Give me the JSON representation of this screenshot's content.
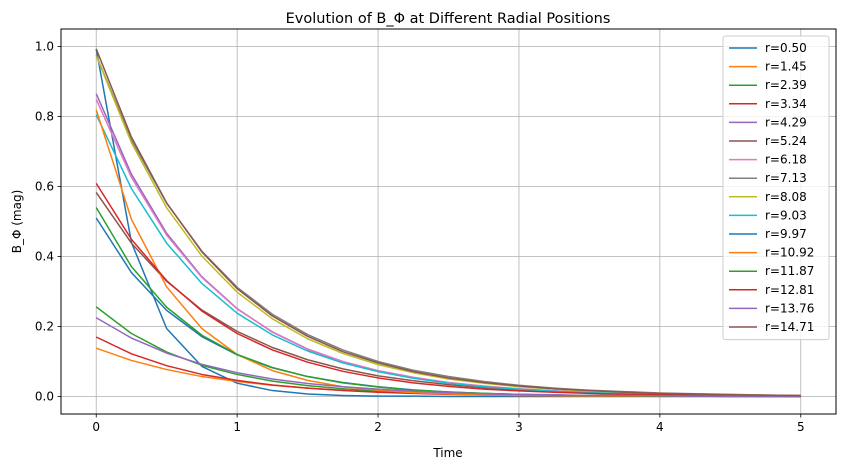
{
  "chart_data": {
    "type": "line",
    "title": "Evolution of B_Φ at Different Radial Positions",
    "xlabel": "Time",
    "ylabel": "B_Φ (mag)",
    "xlim": [
      -0.25,
      5.25
    ],
    "ylim": [
      -0.05,
      1.05
    ],
    "xticks": [
      0,
      1,
      2,
      3,
      4,
      5
    ],
    "yticks": [
      0.0,
      0.2,
      0.4,
      0.6,
      0.8,
      1.0
    ],
    "xtick_labels": [
      "0",
      "1",
      "2",
      "3",
      "4",
      "5"
    ],
    "ytick_labels": [
      "0.0",
      "0.2",
      "0.4",
      "0.6",
      "0.8",
      "1.0"
    ],
    "grid": true,
    "legend_position": "top-right",
    "x": [
      0,
      0.25,
      0.5,
      0.75,
      1,
      1.25,
      1.5,
      1.75,
      2,
      2.25,
      2.5,
      2.75,
      3,
      3.25,
      3.5,
      3.75,
      4,
      4.25,
      4.5,
      4.75,
      5
    ],
    "series": [
      {
        "name": "r=0.50",
        "color": "#1f77b4",
        "values": [
          0.993,
          0.44,
          0.194,
          0.086,
          0.038,
          0.017,
          0.007,
          0.003,
          0.001,
          0.001,
          0,
          0,
          0,
          0,
          0,
          0,
          0,
          0,
          0,
          0,
          0
        ]
      },
      {
        "name": "r=1.45",
        "color": "#ff7f0e",
        "values": [
          0.138,
          0.103,
          0.077,
          0.057,
          0.043,
          0.032,
          0.024,
          0.018,
          0.013,
          0.01,
          0.007,
          0.006,
          0.004,
          0.003,
          0.002,
          0.002,
          0.001,
          0.001,
          0.001,
          0.001,
          0
        ]
      },
      {
        "name": "r=2.39",
        "color": "#2ca02c",
        "values": [
          0.256,
          0.18,
          0.127,
          0.089,
          0.063,
          0.044,
          0.031,
          0.022,
          0.015,
          0.011,
          0.008,
          0.005,
          0.004,
          0.003,
          0.002,
          0.001,
          0.001,
          0.001,
          0,
          0,
          0
        ]
      },
      {
        "name": "r=3.34",
        "color": "#d62728",
        "values": [
          0.17,
          0.122,
          0.088,
          0.063,
          0.046,
          0.033,
          0.024,
          0.017,
          0.012,
          0.009,
          0.006,
          0.005,
          0.003,
          0.002,
          0.002,
          0.001,
          0.001,
          0.001,
          0,
          0,
          0
        ]
      },
      {
        "name": "r=4.29",
        "color": "#9467bd",
        "values": [
          0.865,
          0.635,
          0.466,
          0.342,
          0.251,
          0.184,
          0.135,
          0.099,
          0.073,
          0.053,
          0.039,
          0.029,
          0.021,
          0.016,
          0.011,
          0.008,
          0.006,
          0.005,
          0.003,
          0.002,
          0.002
        ]
      },
      {
        "name": "r=5.24",
        "color": "#8c564b",
        "values": [
          0.583,
          0.438,
          0.329,
          0.247,
          0.186,
          0.14,
          0.105,
          0.079,
          0.059,
          0.045,
          0.034,
          0.025,
          0.019,
          0.014,
          0.011,
          0.008,
          0.006,
          0.005,
          0.003,
          0.003,
          0.002
        ]
      },
      {
        "name": "r=6.18",
        "color": "#e377c2",
        "values": [
          0.849,
          0.626,
          0.461,
          0.34,
          0.25,
          0.185,
          0.136,
          0.1,
          0.074,
          0.055,
          0.04,
          0.03,
          0.022,
          0.016,
          0.012,
          0.009,
          0.006,
          0.005,
          0.004,
          0.003,
          0.002
        ]
      },
      {
        "name": "r=7.13",
        "color": "#7f7f7f",
        "values": [
          0.975,
          0.733,
          0.552,
          0.415,
          0.312,
          0.235,
          0.177,
          0.133,
          0.1,
          0.075,
          0.057,
          0.043,
          0.032,
          0.024,
          0.018,
          0.014,
          0.01,
          0.008,
          0.006,
          0.004,
          0.003
        ]
      },
      {
        "name": "r=8.08",
        "color": "#bcbd22",
        "values": [
          0.974,
          0.725,
          0.539,
          0.401,
          0.298,
          0.222,
          0.165,
          0.123,
          0.091,
          0.068,
          0.05,
          0.038,
          0.028,
          0.021,
          0.015,
          0.011,
          0.009,
          0.006,
          0.005,
          0.004,
          0.003
        ]
      },
      {
        "name": "r=9.03",
        "color": "#17becf",
        "values": [
          0.805,
          0.594,
          0.438,
          0.323,
          0.238,
          0.176,
          0.13,
          0.096,
          0.071,
          0.052,
          0.038,
          0.028,
          0.021,
          0.015,
          0.011,
          0.008,
          0.006,
          0.005,
          0.003,
          0.003,
          0.002
        ]
      },
      {
        "name": "r=9.97",
        "color": "#1f77b4",
        "values": [
          0.51,
          0.354,
          0.246,
          0.171,
          0.119,
          0.082,
          0.057,
          0.04,
          0.028,
          0.019,
          0.013,
          0.009,
          0.006,
          0.004,
          0.003,
          0.002,
          0.002,
          0.001,
          0.001,
          0.001,
          0
        ]
      },
      {
        "name": "r=10.92",
        "color": "#ff7f0e",
        "values": [
          0.819,
          0.506,
          0.313,
          0.194,
          0.12,
          0.074,
          0.046,
          0.028,
          0.018,
          0.011,
          0.007,
          0.004,
          0.003,
          0.002,
          0.001,
          0.001,
          0,
          0,
          0,
          0,
          0
        ]
      },
      {
        "name": "r=11.87",
        "color": "#2ca02c",
        "values": [
          0.54,
          0.371,
          0.255,
          0.175,
          0.12,
          0.083,
          0.057,
          0.039,
          0.027,
          0.018,
          0.013,
          0.009,
          0.006,
          0.004,
          0.003,
          0.002,
          0.001,
          0.001,
          0.001,
          0,
          0
        ]
      },
      {
        "name": "r=12.81",
        "color": "#d62728",
        "values": [
          0.609,
          0.449,
          0.331,
          0.244,
          0.18,
          0.133,
          0.098,
          0.072,
          0.053,
          0.039,
          0.029,
          0.021,
          0.016,
          0.012,
          0.009,
          0.006,
          0.005,
          0.003,
          0.003,
          0.002,
          0.001
        ]
      },
      {
        "name": "r=13.76",
        "color": "#9467bd",
        "values": [
          0.225,
          0.167,
          0.124,
          0.092,
          0.068,
          0.05,
          0.037,
          0.028,
          0.021,
          0.015,
          0.011,
          0.008,
          0.006,
          0.005,
          0.003,
          0.003,
          0.002,
          0.001,
          0.001,
          0.001,
          0.001
        ]
      },
      {
        "name": "r=14.71",
        "color": "#8c564b",
        "values": [
          0.993,
          0.741,
          0.553,
          0.413,
          0.308,
          0.23,
          0.172,
          0.128,
          0.096,
          0.071,
          0.053,
          0.04,
          0.03,
          0.022,
          0.017,
          0.012,
          0.009,
          0.007,
          0.005,
          0.004,
          0.003
        ]
      }
    ]
  }
}
